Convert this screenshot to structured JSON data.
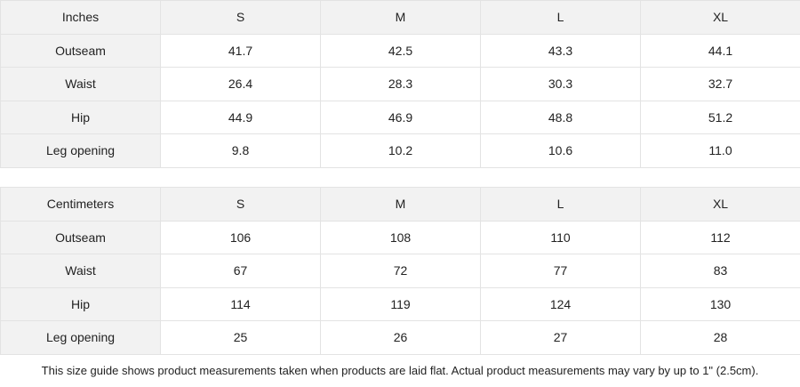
{
  "tables": [
    {
      "unit": "Inches",
      "sizes": [
        "S",
        "M",
        "L",
        "XL"
      ],
      "rows": [
        {
          "label": "Outseam",
          "values": [
            "41.7",
            "42.5",
            "43.3",
            "44.1"
          ]
        },
        {
          "label": "Waist",
          "values": [
            "26.4",
            "28.3",
            "30.3",
            "32.7"
          ]
        },
        {
          "label": "Hip",
          "values": [
            "44.9",
            "46.9",
            "48.8",
            "51.2"
          ]
        },
        {
          "label": "Leg opening",
          "values": [
            "9.8",
            "10.2",
            "10.6",
            "11.0"
          ]
        }
      ]
    },
    {
      "unit": "Centimeters",
      "sizes": [
        "S",
        "M",
        "L",
        "XL"
      ],
      "rows": [
        {
          "label": "Outseam",
          "values": [
            "106",
            "108",
            "110",
            "112"
          ]
        },
        {
          "label": "Waist",
          "values": [
            "67",
            "72",
            "77",
            "83"
          ]
        },
        {
          "label": "Hip",
          "values": [
            "114",
            "119",
            "124",
            "130"
          ]
        },
        {
          "label": "Leg opening",
          "values": [
            "25",
            "26",
            "27",
            "28"
          ]
        }
      ]
    }
  ],
  "note": "This size guide shows product measurements taken when products are laid flat.  Actual product measurements may vary by up to 1\" (2.5cm).",
  "colors": {
    "header_bg": "#f2f2f2",
    "border": "#e3e3e3"
  }
}
